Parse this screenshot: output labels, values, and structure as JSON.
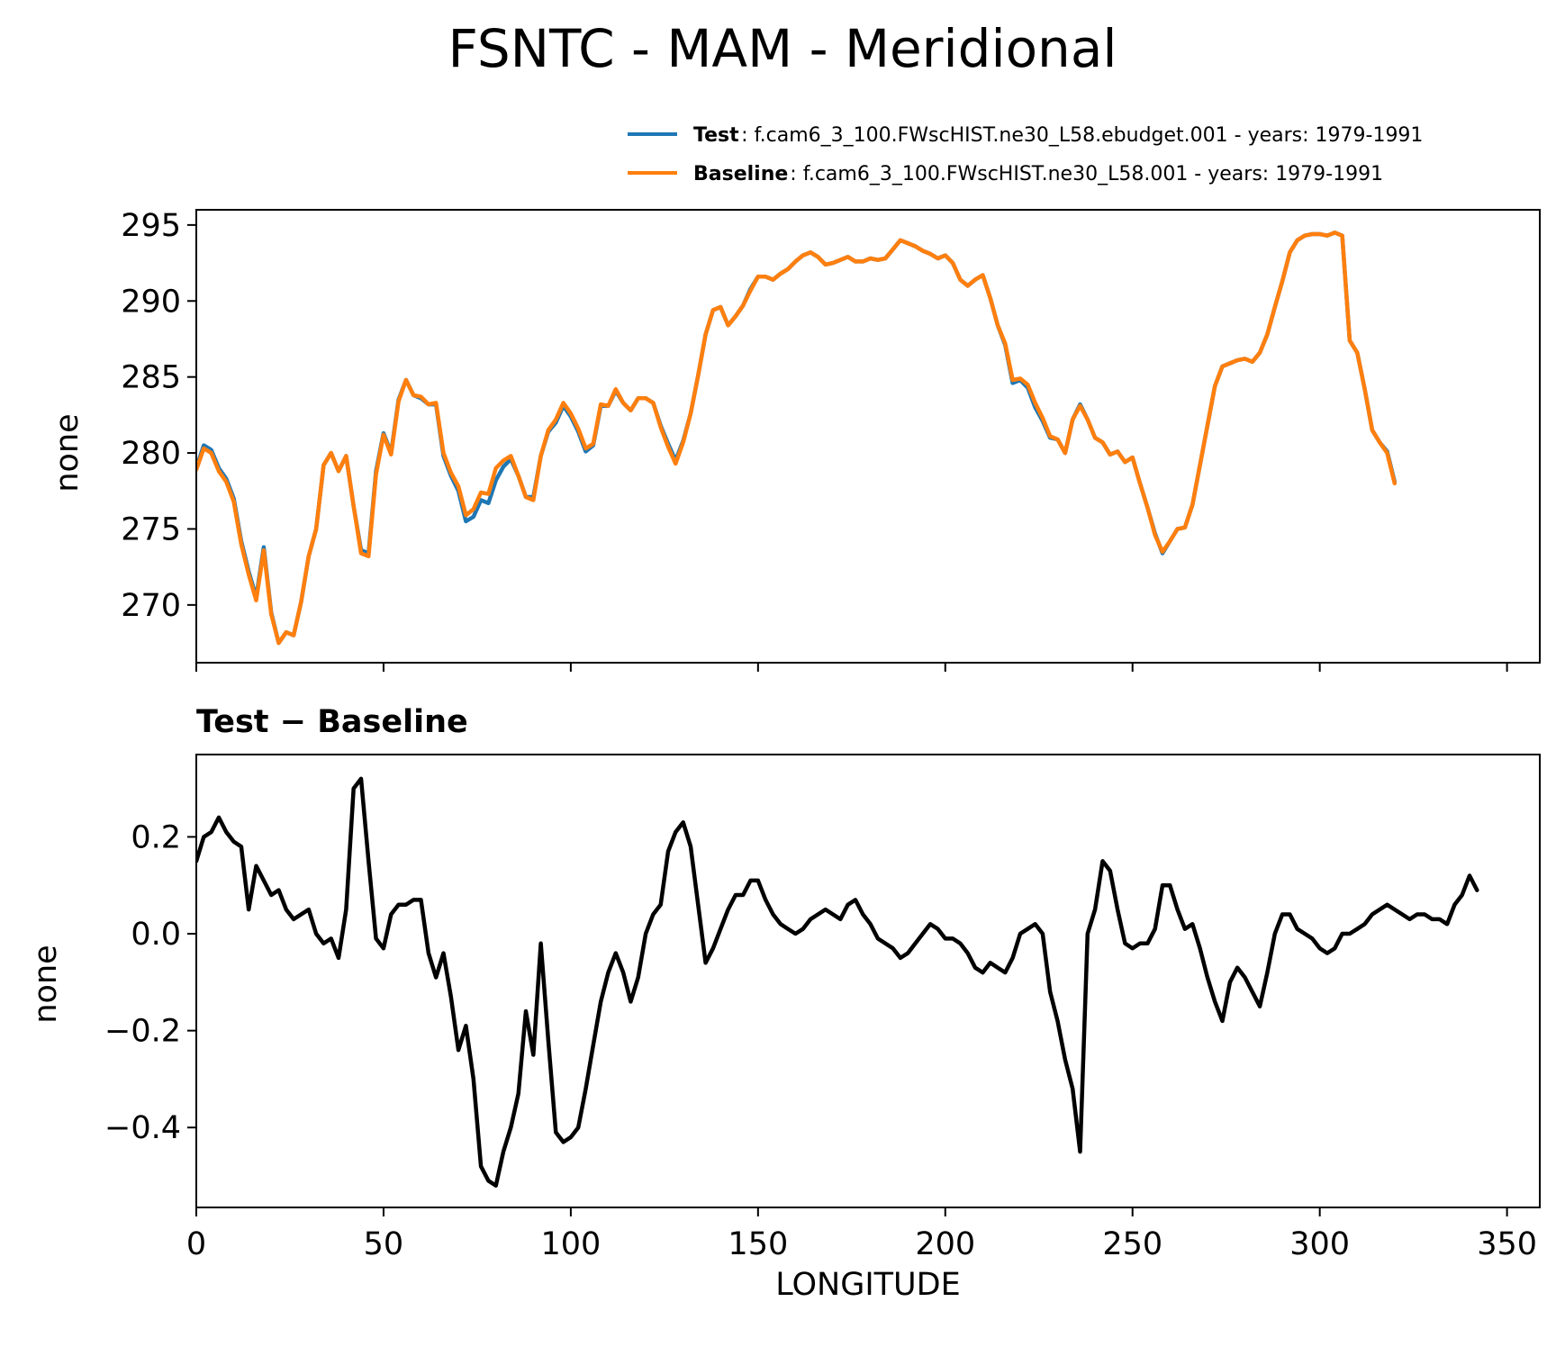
{
  "figure_title": "FSNTC - MAM - Meridional",
  "legend": [
    {
      "key": "Test",
      "text": ": f.cam6_3_100.FWscHIST.ne30_L58.ebudget.001 - years: 1979-1991",
      "color": "#1f77b4"
    },
    {
      "key": "Baseline",
      "text": ": f.cam6_3_100.FWscHIST.ne30_L58.001 - years: 1979-1991",
      "color": "#ff7f0e"
    }
  ],
  "chart_data": [
    {
      "type": "line",
      "title": "",
      "xlabel": "",
      "ylabel": "none",
      "xlim": [
        0,
        358.75
      ],
      "ylim": [
        266.2,
        296.0
      ],
      "yticks": [
        270,
        275,
        280,
        285,
        290,
        295
      ],
      "xticks": [
        0,
        50,
        100,
        150,
        200,
        250,
        300,
        350
      ],
      "legend_position": "top-right, above axes",
      "grid": false,
      "x_keypoints": [
        0,
        2,
        4,
        6,
        8,
        10,
        12,
        14,
        16,
        18,
        20,
        22,
        24,
        26,
        28,
        30,
        32,
        34,
        36,
        38,
        40,
        42,
        44,
        46,
        48,
        50,
        52,
        54,
        56,
        58,
        60,
        62,
        64,
        66,
        68,
        70,
        72,
        74,
        76,
        78,
        80,
        82,
        84,
        86,
        88,
        90,
        92,
        94,
        96,
        98,
        100,
        102,
        104,
        106,
        108,
        110,
        112,
        114,
        116,
        118,
        120,
        122,
        124,
        126,
        128,
        130,
        132,
        134,
        136,
        138,
        140,
        142,
        144,
        146,
        148,
        150,
        152,
        154,
        156,
        158,
        160,
        162,
        164,
        166,
        168,
        170,
        172,
        174,
        176,
        178,
        180,
        182,
        184,
        186,
        188,
        190,
        192,
        194,
        196,
        198,
        200,
        202,
        204,
        206,
        208,
        210,
        212,
        214,
        216,
        218,
        220,
        222,
        224,
        226,
        228,
        230,
        232,
        234,
        236,
        238,
        240,
        242,
        244,
        246,
        248,
        250,
        252,
        254,
        256,
        258,
        260,
        262,
        264,
        266,
        268,
        270,
        272,
        274,
        276,
        278,
        280,
        282,
        284,
        286,
        288,
        290,
        292,
        294,
        296,
        298,
        300,
        302,
        304,
        306,
        308,
        310,
        312,
        314,
        316,
        318,
        320,
        322,
        324,
        326,
        328,
        330,
        332,
        334,
        336,
        338,
        340,
        342,
        344,
        346,
        348,
        350,
        352,
        354,
        356,
        358
      ],
      "series": [
        {
          "name": "Test",
          "color": "#1f77b4",
          "values": [
            279.0,
            280.5,
            280.2,
            279.0,
            278.3,
            277.0,
            274.2,
            272.2,
            270.5,
            273.8,
            269.5,
            267.5,
            268.2,
            268.0,
            270.2,
            273.2,
            275.0,
            279.2,
            280.0,
            278.8,
            279.8,
            276.5,
            273.6,
            273.4,
            278.8,
            281.3,
            280.0,
            283.5,
            284.8,
            283.8,
            283.6,
            283.2,
            283.2,
            279.8,
            278.5,
            277.5,
            275.5,
            275.8,
            276.9,
            276.7,
            278.2,
            279.1,
            279.6,
            278.5,
            277.1,
            277.1,
            279.8,
            281.4,
            282.0,
            283.1,
            282.4,
            281.4,
            280.1,
            280.5,
            283.1,
            283.1,
            284.1,
            283.3,
            282.8,
            283.6,
            283.6,
            283.3,
            281.8,
            280.6,
            279.5,
            280.8,
            282.6,
            285.1,
            287.8,
            289.4,
            289.6,
            288.4,
            289.0,
            289.7,
            290.8,
            291.6,
            291.6,
            291.4,
            291.8,
            292.1,
            292.6,
            293.0,
            293.2,
            292.9,
            292.4,
            292.5,
            292.7,
            292.9,
            292.6,
            292.6,
            292.8,
            292.7,
            292.8,
            293.4,
            294.0,
            293.8,
            293.6,
            293.3,
            293.1,
            292.8,
            293.0,
            292.5,
            291.4,
            291.0,
            291.4,
            291.7,
            290.2,
            288.4,
            287.1,
            284.6,
            284.8,
            284.3,
            283.0,
            282.1,
            281.0,
            280.9,
            280.0,
            282.2,
            283.2,
            282.2,
            281.0,
            280.7,
            279.9,
            280.1,
            279.4,
            279.7,
            278.0,
            276.4,
            274.7,
            273.4,
            274.2,
            275.0,
            275.1,
            276.6,
            279.2,
            281.8,
            284.4,
            285.7,
            285.9,
            286.1,
            286.2,
            286.0,
            286.6,
            287.8,
            289.6,
            291.3,
            293.2,
            294.0,
            294.3,
            294.4,
            294.4,
            294.3,
            294.5,
            294.3,
            287.4,
            286.6,
            284.2,
            281.5,
            280.7,
            280.1,
            278.1
          ]
        },
        {
          "name": "Baseline",
          "color": "#ff7f0e",
          "values": [
            278.9,
            280.3,
            280.0,
            278.8,
            278.1,
            276.8,
            274.0,
            272.0,
            270.3,
            273.6,
            269.4,
            267.5,
            268.2,
            268.0,
            270.2,
            273.2,
            275.0,
            279.2,
            280.0,
            278.8,
            279.8,
            276.5,
            273.4,
            273.2,
            278.6,
            281.2,
            279.9,
            283.4,
            284.8,
            283.8,
            283.7,
            283.2,
            283.3,
            280.0,
            278.7,
            277.8,
            275.9,
            276.3,
            277.4,
            277.3,
            279.0,
            279.5,
            279.8,
            278.5,
            277.1,
            276.9,
            279.8,
            281.5,
            282.2,
            283.3,
            282.6,
            281.6,
            280.3,
            280.6,
            283.2,
            283.1,
            284.2,
            283.3,
            282.8,
            283.6,
            283.6,
            283.3,
            281.7,
            280.4,
            279.3,
            280.7,
            282.6,
            285.1,
            287.8,
            289.4,
            289.6,
            288.4,
            289.0,
            289.7,
            290.7,
            291.6,
            291.6,
            291.4,
            291.8,
            292.1,
            292.6,
            293.0,
            293.2,
            292.9,
            292.4,
            292.5,
            292.7,
            292.9,
            292.6,
            292.6,
            292.8,
            292.7,
            292.8,
            293.4,
            294.0,
            293.8,
            293.6,
            293.3,
            293.1,
            292.8,
            293.0,
            292.5,
            291.4,
            291.0,
            291.4,
            291.7,
            290.2,
            288.4,
            287.2,
            284.8,
            284.9,
            284.5,
            283.3,
            282.3,
            281.1,
            280.9,
            280.0,
            282.2,
            283.1,
            282.2,
            281.0,
            280.7,
            279.9,
            280.1,
            279.4,
            279.7,
            278.0,
            276.4,
            274.6,
            273.5,
            274.2,
            275.0,
            275.1,
            276.6,
            279.2,
            281.8,
            284.4,
            285.7,
            285.9,
            286.1,
            286.2,
            286.0,
            286.6,
            287.8,
            289.6,
            291.3,
            293.2,
            294.0,
            294.3,
            294.4,
            294.4,
            294.3,
            294.5,
            294.3,
            287.4,
            286.6,
            284.2,
            281.5,
            280.7,
            280.0,
            278.0
          ]
        }
      ]
    },
    {
      "type": "line",
      "title": "Test − Baseline",
      "xlabel": "LONGITUDE",
      "ylabel": "none",
      "xlim": [
        0,
        358.75
      ],
      "ylim": [
        -0.565,
        0.37
      ],
      "yticks": [
        -0.4,
        -0.2,
        0.0,
        0.2
      ],
      "ytick_labels": [
        "−0.4",
        "−0.2",
        "0.0",
        "0.2"
      ],
      "xticks": [
        0,
        50,
        100,
        150,
        200,
        250,
        300,
        350
      ],
      "xtick_labels": [
        "0",
        "50",
        "100",
        "150",
        "200",
        "250",
        "300",
        "350"
      ],
      "grid": false,
      "x_keypoints": [
        0,
        2,
        4,
        6,
        8,
        10,
        12,
        14,
        16,
        18,
        20,
        22,
        24,
        26,
        28,
        30,
        32,
        34,
        36,
        38,
        40,
        42,
        44,
        46,
        48,
        50,
        52,
        54,
        56,
        58,
        60,
        62,
        64,
        66,
        68,
        70,
        72,
        74,
        76,
        78,
        80,
        82,
        84,
        86,
        88,
        90,
        92,
        94,
        96,
        98,
        100,
        102,
        104,
        106,
        108,
        110,
        112,
        114,
        116,
        118,
        120,
        122,
        124,
        126,
        128,
        130,
        132,
        134,
        136,
        138,
        140,
        142,
        144,
        146,
        148,
        150,
        152,
        154,
        156,
        158,
        160,
        162,
        164,
        166,
        168,
        170,
        172,
        174,
        176,
        178,
        180,
        182,
        184,
        186,
        188,
        190,
        192,
        194,
        196,
        198,
        200,
        202,
        204,
        206,
        208,
        210,
        212,
        214,
        216,
        218,
        220,
        222,
        224,
        226,
        228,
        230,
        232,
        234,
        236,
        238,
        240,
        242,
        244,
        246,
        248,
        250,
        252,
        254,
        256,
        258,
        260,
        262,
        264,
        266,
        268,
        270,
        272,
        274,
        276,
        278,
        280,
        282,
        284,
        286,
        288,
        290,
        292,
        294,
        296,
        298,
        300,
        302,
        304,
        306,
        308,
        310,
        312,
        314,
        316,
        318,
        320,
        322,
        324,
        326,
        328,
        330,
        332,
        334,
        336,
        338,
        340,
        342,
        344,
        346,
        348,
        350,
        352,
        354,
        356,
        358
      ],
      "series": [
        {
          "name": "Test − Baseline",
          "color": "#000000",
          "values": [
            0.15,
            0.2,
            0.21,
            0.24,
            0.21,
            0.19,
            0.18,
            0.05,
            0.14,
            0.11,
            0.08,
            0.09,
            0.05,
            0.03,
            0.04,
            0.05,
            0.0,
            -0.02,
            -0.01,
            -0.05,
            0.05,
            0.3,
            0.32,
            0.15,
            -0.01,
            -0.03,
            0.04,
            0.06,
            0.06,
            0.07,
            0.07,
            -0.04,
            -0.09,
            -0.04,
            -0.13,
            -0.24,
            -0.19,
            -0.3,
            -0.48,
            -0.51,
            -0.52,
            -0.45,
            -0.4,
            -0.33,
            -0.16,
            -0.25,
            -0.02,
            -0.22,
            -0.41,
            -0.43,
            -0.42,
            -0.4,
            -0.32,
            -0.23,
            -0.14,
            -0.08,
            -0.04,
            -0.08,
            -0.14,
            -0.09,
            0.0,
            0.04,
            0.06,
            0.17,
            0.21,
            0.23,
            0.18,
            0.06,
            -0.06,
            -0.03,
            0.01,
            0.05,
            0.08,
            0.08,
            0.11,
            0.11,
            0.07,
            0.04,
            0.02,
            0.01,
            0.0,
            0.01,
            0.03,
            0.04,
            0.05,
            0.04,
            0.03,
            0.06,
            0.07,
            0.04,
            0.02,
            -0.01,
            -0.02,
            -0.03,
            -0.05,
            -0.04,
            -0.02,
            0.0,
            0.02,
            0.01,
            -0.01,
            -0.01,
            -0.02,
            -0.04,
            -0.07,
            -0.08,
            -0.06,
            -0.07,
            -0.08,
            -0.05,
            0.0,
            0.01,
            0.02,
            0.0,
            -0.12,
            -0.18,
            -0.26,
            -0.32,
            -0.45,
            0.0,
            0.05,
            0.15,
            0.13,
            0.05,
            -0.02,
            -0.03,
            -0.02,
            -0.02,
            0.01,
            0.1,
            0.1,
            0.05,
            0.01,
            0.02,
            -0.03,
            -0.09,
            -0.14,
            -0.18,
            -0.1,
            -0.07,
            -0.09,
            -0.12,
            -0.15,
            -0.08,
            0.0,
            0.04,
            0.04,
            0.01,
            0.0,
            -0.01,
            -0.03,
            -0.04,
            -0.03,
            0.0,
            0.0,
            0.01,
            0.02,
            0.04,
            0.05,
            0.06,
            0.05,
            0.04,
            0.03,
            0.04,
            0.04,
            0.03,
            0.03,
            0.02,
            0.06,
            0.08,
            0.12,
            0.09
          ]
        }
      ]
    }
  ]
}
